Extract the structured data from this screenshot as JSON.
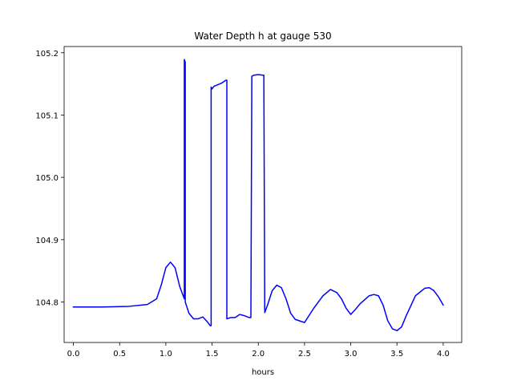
{
  "chart_data": {
    "type": "line",
    "title": "Water Depth h at gauge 530",
    "xlabel": "hours",
    "ylabel": "",
    "xlim": [
      -0.1,
      4.2
    ],
    "ylim": [
      104.735,
      105.21
    ],
    "xticks": [
      0.0,
      0.5,
      1.0,
      1.5,
      2.0,
      2.5,
      3.0,
      3.5,
      4.0
    ],
    "xtick_labels": [
      "0.0",
      "0.5",
      "1.0",
      "1.5",
      "2.0",
      "2.5",
      "3.0",
      "3.5",
      "4.0"
    ],
    "yticks": [
      104.8,
      104.9,
      105.0,
      105.1,
      105.2
    ],
    "ytick_labels": [
      "104.8",
      "104.9",
      "105.0",
      "105.1",
      "105.2"
    ],
    "grid": false,
    "series": [
      {
        "color": "#0000ff",
        "x": [
          0.0,
          0.3,
          0.6,
          0.8,
          0.9,
          0.95,
          1.0,
          1.05,
          1.1,
          1.15,
          1.2,
          1.2,
          1.21,
          1.21,
          1.25,
          1.3,
          1.35,
          1.4,
          1.45,
          1.48,
          1.49,
          1.49,
          1.5,
          1.52,
          1.55,
          1.6,
          1.65,
          1.66,
          1.66,
          1.7,
          1.75,
          1.8,
          1.85,
          1.9,
          1.92,
          1.93,
          1.95,
          2.0,
          2.05,
          2.06,
          2.07,
          2.1,
          2.15,
          2.2,
          2.25,
          2.3,
          2.35,
          2.4,
          2.5,
          2.6,
          2.7,
          2.78,
          2.85,
          2.9,
          2.95,
          3.0,
          3.05,
          3.1,
          3.2,
          3.25,
          3.3,
          3.35,
          3.4,
          3.45,
          3.5,
          3.55,
          3.6,
          3.7,
          3.8,
          3.85,
          3.9,
          3.95,
          4.0
        ],
        "y": [
          104.792,
          104.792,
          104.793,
          104.796,
          104.805,
          104.827,
          104.855,
          104.864,
          104.855,
          104.825,
          104.805,
          105.189,
          105.185,
          104.8,
          104.782,
          104.773,
          104.773,
          104.776,
          104.768,
          104.762,
          104.762,
          105.145,
          105.142,
          105.146,
          105.148,
          105.151,
          105.156,
          105.156,
          104.773,
          104.775,
          104.775,
          104.78,
          104.778,
          104.775,
          104.775,
          105.162,
          105.164,
          105.165,
          105.164,
          105.164,
          104.783,
          104.795,
          104.818,
          104.827,
          104.823,
          104.805,
          104.782,
          104.772,
          104.767,
          104.79,
          104.81,
          104.82,
          104.815,
          104.805,
          104.79,
          104.78,
          104.788,
          104.797,
          104.81,
          104.812,
          104.81,
          104.795,
          104.77,
          104.757,
          104.754,
          104.76,
          104.778,
          104.81,
          104.822,
          104.823,
          104.818,
          104.808,
          104.795
        ]
      }
    ]
  }
}
